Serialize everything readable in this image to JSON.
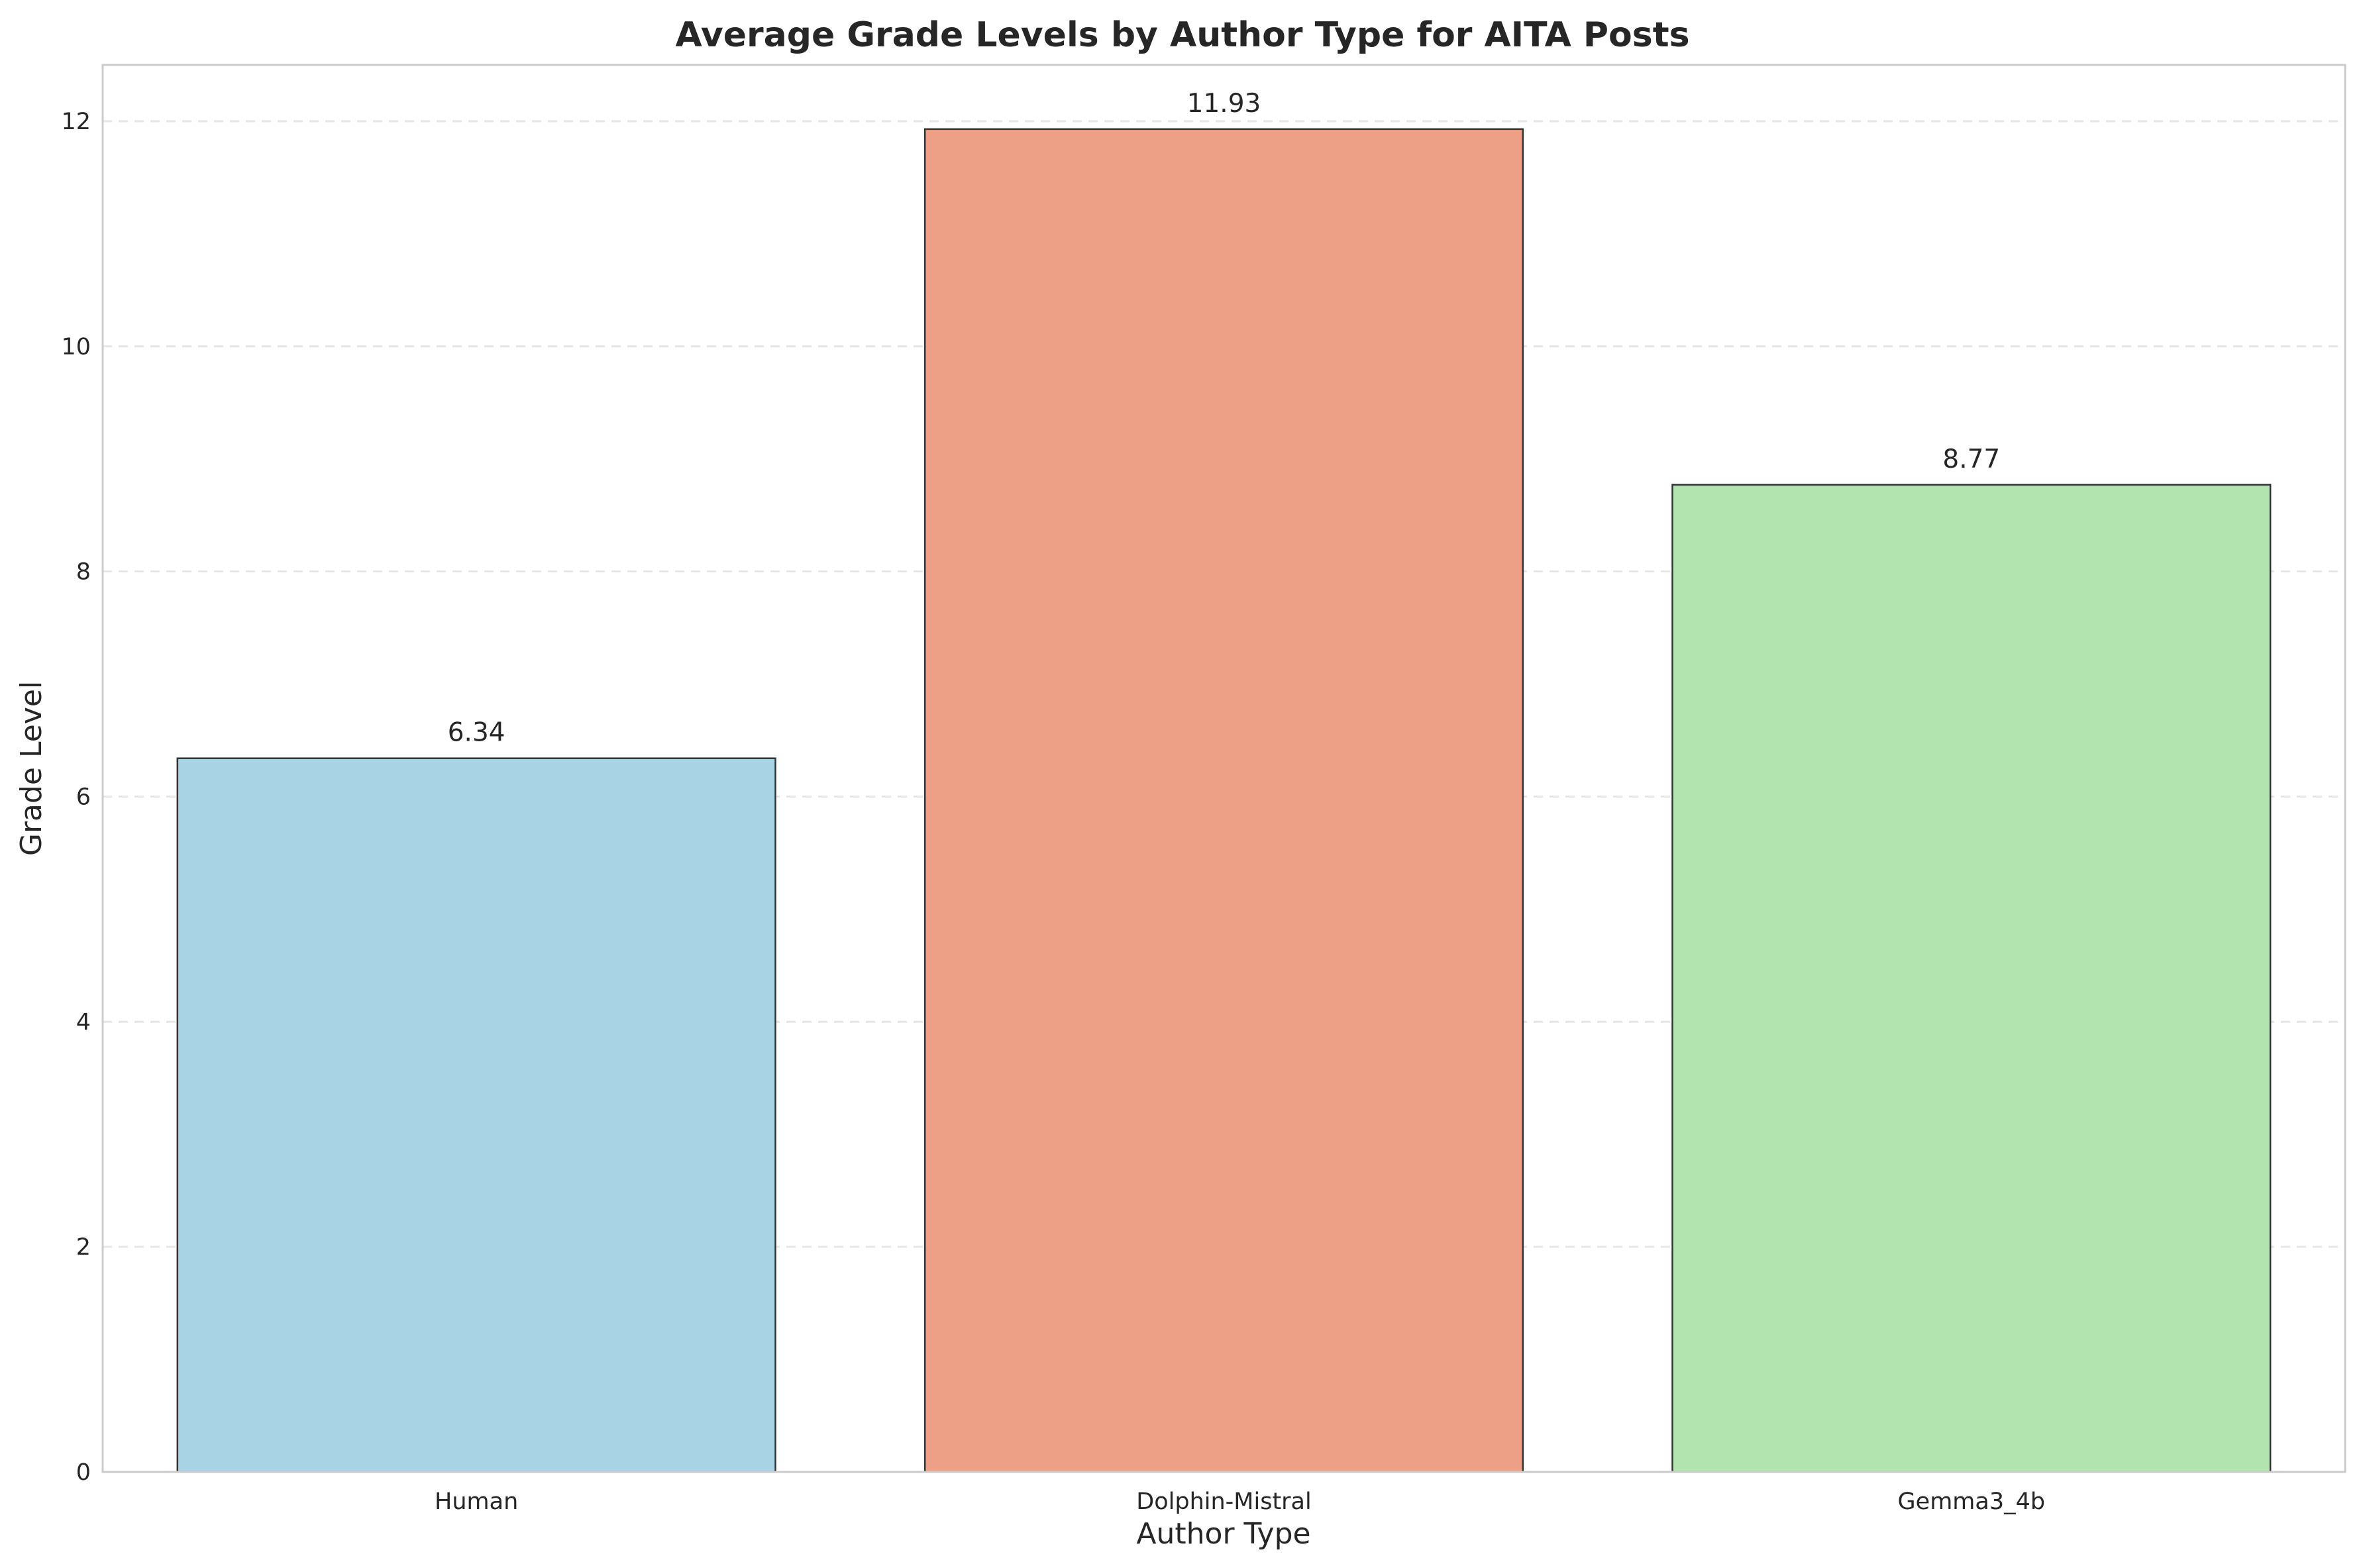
{
  "chart_data": {
    "type": "bar",
    "title": "Average Grade Levels by Author Type for AITA Posts",
    "xlabel": "Author Type",
    "ylabel": "Grade Level",
    "categories": [
      "Human",
      "Dolphin-Mistral",
      "Gemma3_4b"
    ],
    "values": [
      6.34,
      11.93,
      8.77
    ],
    "value_labels": [
      "6.34",
      "11.93",
      "8.77"
    ],
    "colors": [
      "#a8d3e4",
      "#eda086",
      "#b1e4ae"
    ],
    "ylim": [
      0,
      12.5
    ],
    "yticks": [
      0,
      2,
      4,
      6,
      8,
      10,
      12
    ],
    "ytick_labels": [
      "0",
      "2",
      "4",
      "6",
      "8",
      "10",
      "12"
    ],
    "grid": "y-dashed",
    "legend": "none"
  }
}
